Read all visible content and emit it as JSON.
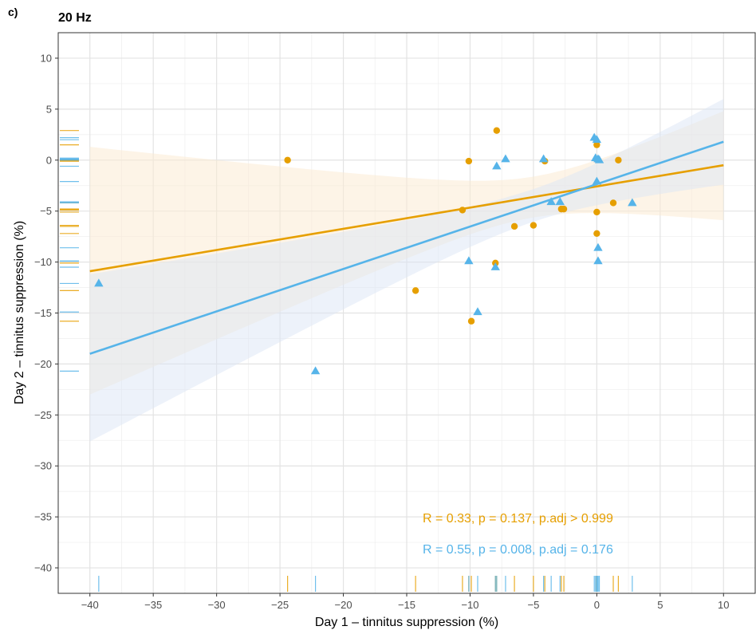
{
  "panel_label": "c)",
  "colors": {
    "orange": "#E69F00",
    "blue": "#56B4E9",
    "orange_band": "#FCEBD4",
    "blue_band": "#DCE6F6"
  },
  "chart_data": {
    "type": "scatter",
    "title": "20 Hz",
    "xlabel": "Day 1 – tinnitus suppression (%)",
    "ylabel": "Day 2 – tinnitus suppression (%)",
    "xlim": [
      -42.5,
      12.5
    ],
    "ylim": [
      -42.5,
      12.5
    ],
    "x_ticks": [
      -40,
      -35,
      -30,
      -25,
      -20,
      -15,
      -10,
      -5,
      0,
      5,
      10
    ],
    "y_ticks": [
      -40,
      -35,
      -30,
      -25,
      -20,
      -15,
      -10,
      -5,
      0,
      5,
      10
    ],
    "x_tick_labels": [
      "−40",
      "−35",
      "−30",
      "−25",
      "−20",
      "−15",
      "−10",
      "−5",
      "0",
      "5",
      "10"
    ],
    "y_tick_labels": [
      "−40",
      "−35",
      "−30",
      "−25",
      "−20",
      "−15",
      "−10",
      "−5",
      "0",
      "5",
      "10"
    ],
    "grid": true,
    "series": [
      {
        "color": "orange",
        "marker": "circle",
        "points": [
          [
            -24.4,
            0.0
          ],
          [
            -10.1,
            -0.1
          ],
          [
            -7.9,
            2.9
          ],
          [
            -10.6,
            -4.9
          ],
          [
            -8.0,
            -10.1
          ],
          [
            -14.3,
            -12.8
          ],
          [
            -9.9,
            -15.8
          ],
          [
            -6.5,
            -6.5
          ],
          [
            -5.0,
            -6.4
          ],
          [
            -4.1,
            -0.1
          ],
          [
            -2.8,
            -4.8
          ],
          [
            -2.6,
            -4.8
          ],
          [
            0.0,
            1.5
          ],
          [
            1.7,
            0.0
          ],
          [
            1.3,
            -4.2
          ],
          [
            0.0,
            -5.1
          ],
          [
            0.0,
            -7.2
          ]
        ],
        "fit": {
          "x": [
            -40,
            10
          ],
          "y": [
            -10.9,
            -0.5
          ],
          "ci_upper": [
            1.3,
            4.8
          ],
          "ci_lower": [
            -23.0,
            -5.9
          ]
        },
        "annotation": "R = 0.33, p = 0.137, p.adj > 0.999"
      },
      {
        "color": "blue",
        "marker": "triangle",
        "points": [
          [
            -39.3,
            -12.1
          ],
          [
            -22.2,
            -20.7
          ],
          [
            -10.1,
            -9.9
          ],
          [
            -9.4,
            -14.9
          ],
          [
            -8.0,
            -10.5
          ],
          [
            -7.9,
            -0.6
          ],
          [
            -7.2,
            0.1
          ],
          [
            -4.2,
            0.1
          ],
          [
            -3.6,
            -4.1
          ],
          [
            -2.9,
            -4.1
          ],
          [
            -0.2,
            2.2
          ],
          [
            0.0,
            2.0
          ],
          [
            -0.1,
            0.2
          ],
          [
            0.1,
            0.1
          ],
          [
            0.2,
            0.0
          ],
          [
            0.0,
            -2.1
          ],
          [
            0.1,
            -8.6
          ],
          [
            0.1,
            -9.9
          ],
          [
            2.8,
            -4.2
          ]
        ],
        "fit": {
          "x": [
            -40,
            10
          ],
          "y": [
            -19.0,
            1.8
          ],
          "ci_upper": [
            -11.2,
            6.0
          ],
          "ci_lower": [
            -27.6,
            -2.4
          ]
        },
        "annotation": "R = 0.55, p = 0.008, p.adj = 0.176"
      }
    ]
  }
}
